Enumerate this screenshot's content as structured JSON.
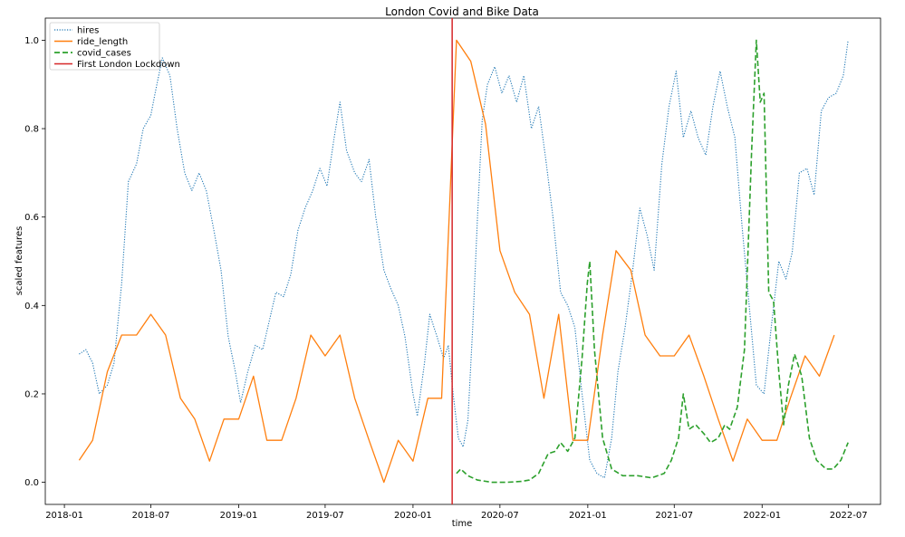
{
  "chart_data": {
    "type": "line",
    "title": "London Covid and Bike Data",
    "xlabel": "time",
    "ylabel": "scaled features",
    "x_ticks": [
      "2018-01",
      "2018-07",
      "2019-01",
      "2019-07",
      "2020-01",
      "2020-07",
      "2021-01",
      "2021-07",
      "2022-01",
      "2022-07"
    ],
    "y_ticks": [
      "0.0",
      "0.2",
      "0.4",
      "0.6",
      "0.8",
      "1.0"
    ],
    "xlim": [
      "2017-11-22",
      "2022-09-06"
    ],
    "ylim": [
      -0.05,
      1.05
    ],
    "grid": false,
    "legend_position": "top-left",
    "series": [
      {
        "name": "hires",
        "color": "#1f77b4",
        "style": "dotted",
        "points": [
          [
            "2018-02-01",
            0.29
          ],
          [
            "2018-02-15",
            0.3
          ],
          [
            "2018-03-01",
            0.27
          ],
          [
            "2018-03-15",
            0.2
          ],
          [
            "2018-04-01",
            0.22
          ],
          [
            "2018-04-15",
            0.27
          ],
          [
            "2018-05-01",
            0.45
          ],
          [
            "2018-05-15",
            0.68
          ],
          [
            "2018-06-01",
            0.72
          ],
          [
            "2018-06-15",
            0.8
          ],
          [
            "2018-07-01",
            0.83
          ],
          [
            "2018-07-10",
            0.88
          ],
          [
            "2018-07-25",
            0.96
          ],
          [
            "2018-08-10",
            0.92
          ],
          [
            "2018-08-25",
            0.8
          ],
          [
            "2018-09-10",
            0.7
          ],
          [
            "2018-09-25",
            0.66
          ],
          [
            "2018-10-10",
            0.7
          ],
          [
            "2018-10-25",
            0.66
          ],
          [
            "2018-11-10",
            0.57
          ],
          [
            "2018-11-25",
            0.48
          ],
          [
            "2018-12-10",
            0.33
          ],
          [
            "2018-12-25",
            0.25
          ],
          [
            "2019-01-05",
            0.18
          ],
          [
            "2019-01-20",
            0.25
          ],
          [
            "2019-02-05",
            0.31
          ],
          [
            "2019-02-20",
            0.3
          ],
          [
            "2019-03-05",
            0.36
          ],
          [
            "2019-03-20",
            0.43
          ],
          [
            "2019-04-05",
            0.42
          ],
          [
            "2019-04-20",
            0.47
          ],
          [
            "2019-05-05",
            0.57
          ],
          [
            "2019-05-20",
            0.62
          ],
          [
            "2019-06-05",
            0.66
          ],
          [
            "2019-06-20",
            0.71
          ],
          [
            "2019-07-05",
            0.67
          ],
          [
            "2019-07-20",
            0.78
          ],
          [
            "2019-08-01",
            0.86
          ],
          [
            "2019-08-15",
            0.75
          ],
          [
            "2019-09-01",
            0.7
          ],
          [
            "2019-09-15",
            0.68
          ],
          [
            "2019-10-01",
            0.73
          ],
          [
            "2019-10-15",
            0.6
          ],
          [
            "2019-11-01",
            0.48
          ],
          [
            "2019-11-15",
            0.44
          ],
          [
            "2019-12-01",
            0.4
          ],
          [
            "2019-12-15",
            0.33
          ],
          [
            "2020-01-01",
            0.2
          ],
          [
            "2020-01-10",
            0.15
          ],
          [
            "2020-01-25",
            0.27
          ],
          [
            "2020-02-05",
            0.38
          ],
          [
            "2020-02-20",
            0.33
          ],
          [
            "2020-03-05",
            0.28
          ],
          [
            "2020-03-15",
            0.31
          ],
          [
            "2020-03-25",
            0.2
          ],
          [
            "2020-04-05",
            0.1
          ],
          [
            "2020-04-15",
            0.08
          ],
          [
            "2020-04-25",
            0.14
          ],
          [
            "2020-05-05",
            0.35
          ],
          [
            "2020-05-15",
            0.6
          ],
          [
            "2020-05-25",
            0.82
          ],
          [
            "2020-06-05",
            0.9
          ],
          [
            "2020-06-20",
            0.94
          ],
          [
            "2020-07-05",
            0.88
          ],
          [
            "2020-07-20",
            0.92
          ],
          [
            "2020-08-05",
            0.86
          ],
          [
            "2020-08-20",
            0.92
          ],
          [
            "2020-09-05",
            0.8
          ],
          [
            "2020-09-20",
            0.85
          ],
          [
            "2020-10-05",
            0.73
          ],
          [
            "2020-10-20",
            0.6
          ],
          [
            "2020-11-05",
            0.43
          ],
          [
            "2020-11-20",
            0.4
          ],
          [
            "2020-12-05",
            0.35
          ],
          [
            "2020-12-20",
            0.2
          ],
          [
            "2021-01-05",
            0.05
          ],
          [
            "2021-01-20",
            0.02
          ],
          [
            "2021-02-05",
            0.01
          ],
          [
            "2021-02-20",
            0.1
          ],
          [
            "2021-03-05",
            0.25
          ],
          [
            "2021-03-20",
            0.35
          ],
          [
            "2021-04-05",
            0.48
          ],
          [
            "2021-04-20",
            0.62
          ],
          [
            "2021-05-05",
            0.56
          ],
          [
            "2021-05-20",
            0.48
          ],
          [
            "2021-06-05",
            0.72
          ],
          [
            "2021-06-20",
            0.85
          ],
          [
            "2021-07-05",
            0.93
          ],
          [
            "2021-07-20",
            0.78
          ],
          [
            "2021-08-05",
            0.84
          ],
          [
            "2021-08-20",
            0.78
          ],
          [
            "2021-09-05",
            0.74
          ],
          [
            "2021-09-20",
            0.85
          ],
          [
            "2021-10-05",
            0.93
          ],
          [
            "2021-10-20",
            0.85
          ],
          [
            "2021-11-05",
            0.78
          ],
          [
            "2021-11-20",
            0.58
          ],
          [
            "2021-12-05",
            0.4
          ],
          [
            "2021-12-20",
            0.22
          ],
          [
            "2022-01-05",
            0.2
          ],
          [
            "2022-01-20",
            0.35
          ],
          [
            "2022-02-05",
            0.5
          ],
          [
            "2022-02-20",
            0.46
          ],
          [
            "2022-03-05",
            0.52
          ],
          [
            "2022-03-20",
            0.7
          ],
          [
            "2022-04-05",
            0.71
          ],
          [
            "2022-04-20",
            0.65
          ],
          [
            "2022-05-05",
            0.84
          ],
          [
            "2022-05-20",
            0.87
          ],
          [
            "2022-06-05",
            0.88
          ],
          [
            "2022-06-20",
            0.92
          ],
          [
            "2022-06-30",
            1.0
          ]
        ]
      },
      {
        "name": "ride_length",
        "color": "#ff7f0e",
        "style": "solid",
        "points": [
          [
            "2018-02-01",
            0.05
          ],
          [
            "2018-03-01",
            0.095
          ],
          [
            "2018-04-01",
            0.25
          ],
          [
            "2018-05-01",
            0.333
          ],
          [
            "2018-06-01",
            0.333
          ],
          [
            "2018-07-01",
            0.38
          ],
          [
            "2018-08-01",
            0.333
          ],
          [
            "2018-09-01",
            0.19
          ],
          [
            "2018-10-01",
            0.143
          ],
          [
            "2018-11-01",
            0.048
          ],
          [
            "2018-12-01",
            0.143
          ],
          [
            "2019-01-01",
            0.143
          ],
          [
            "2019-02-01",
            0.24
          ],
          [
            "2019-03-01",
            0.095
          ],
          [
            "2019-04-01",
            0.095
          ],
          [
            "2019-05-01",
            0.19
          ],
          [
            "2019-06-01",
            0.333
          ],
          [
            "2019-07-01",
            0.286
          ],
          [
            "2019-08-01",
            0.333
          ],
          [
            "2019-09-01",
            0.19
          ],
          [
            "2019-10-01",
            0.095
          ],
          [
            "2019-11-01",
            0.0
          ],
          [
            "2019-12-01",
            0.095
          ],
          [
            "2020-01-01",
            0.048
          ],
          [
            "2020-02-01",
            0.19
          ],
          [
            "2020-03-01",
            0.19
          ],
          [
            "2020-04-01",
            1.0
          ],
          [
            "2020-05-01",
            0.952
          ],
          [
            "2020-06-01",
            0.81
          ],
          [
            "2020-07-01",
            0.524
          ],
          [
            "2020-08-01",
            0.43
          ],
          [
            "2020-09-01",
            0.38
          ],
          [
            "2020-10-01",
            0.19
          ],
          [
            "2020-11-01",
            0.38
          ],
          [
            "2020-12-01",
            0.095
          ],
          [
            "2021-01-01",
            0.095
          ],
          [
            "2021-02-01",
            0.333
          ],
          [
            "2021-03-01",
            0.524
          ],
          [
            "2021-04-01",
            0.48
          ],
          [
            "2021-05-01",
            0.333
          ],
          [
            "2021-06-01",
            0.286
          ],
          [
            "2021-07-01",
            0.286
          ],
          [
            "2021-08-01",
            0.333
          ],
          [
            "2021-09-01",
            0.24
          ],
          [
            "2021-10-01",
            0.143
          ],
          [
            "2021-11-01",
            0.048
          ],
          [
            "2021-12-01",
            0.143
          ],
          [
            "2022-01-01",
            0.095
          ],
          [
            "2022-02-01",
            0.095
          ],
          [
            "2022-03-01",
            0.19
          ],
          [
            "2022-04-01",
            0.286
          ],
          [
            "2022-05-01",
            0.24
          ],
          [
            "2022-06-01",
            0.333
          ]
        ]
      },
      {
        "name": "covid_cases",
        "color": "#2ca02c",
        "style": "dashed",
        "points": [
          [
            "2020-04-01",
            0.02
          ],
          [
            "2020-04-10",
            0.03
          ],
          [
            "2020-04-25",
            0.015
          ],
          [
            "2020-05-15",
            0.005
          ],
          [
            "2020-06-15",
            0.0
          ],
          [
            "2020-07-15",
            0.0
          ],
          [
            "2020-08-15",
            0.002
          ],
          [
            "2020-09-01",
            0.005
          ],
          [
            "2020-09-20",
            0.02
          ],
          [
            "2020-10-10",
            0.065
          ],
          [
            "2020-10-25",
            0.07
          ],
          [
            "2020-11-05",
            0.09
          ],
          [
            "2020-11-20",
            0.07
          ],
          [
            "2020-12-05",
            0.1
          ],
          [
            "2020-12-20",
            0.28
          ],
          [
            "2020-12-31",
            0.45
          ],
          [
            "2021-01-05",
            0.5
          ],
          [
            "2021-01-15",
            0.3
          ],
          [
            "2021-02-01",
            0.1
          ],
          [
            "2021-02-20",
            0.03
          ],
          [
            "2021-03-15",
            0.015
          ],
          [
            "2021-04-15",
            0.015
          ],
          [
            "2021-05-15",
            0.01
          ],
          [
            "2021-06-10",
            0.02
          ],
          [
            "2021-06-25",
            0.05
          ],
          [
            "2021-07-10",
            0.1
          ],
          [
            "2021-07-20",
            0.2
          ],
          [
            "2021-08-01",
            0.12
          ],
          [
            "2021-08-15",
            0.13
          ],
          [
            "2021-09-01",
            0.11
          ],
          [
            "2021-09-15",
            0.09
          ],
          [
            "2021-10-01",
            0.1
          ],
          [
            "2021-10-15",
            0.13
          ],
          [
            "2021-10-25",
            0.12
          ],
          [
            "2021-11-10",
            0.17
          ],
          [
            "2021-11-25",
            0.3
          ],
          [
            "2021-12-10",
            0.75
          ],
          [
            "2021-12-20",
            1.0
          ],
          [
            "2021-12-28",
            0.86
          ],
          [
            "2022-01-05",
            0.88
          ],
          [
            "2022-01-15",
            0.43
          ],
          [
            "2022-01-25",
            0.41
          ],
          [
            "2022-02-05",
            0.25
          ],
          [
            "2022-02-15",
            0.13
          ],
          [
            "2022-02-25",
            0.22
          ],
          [
            "2022-03-10",
            0.29
          ],
          [
            "2022-03-25",
            0.24
          ],
          [
            "2022-04-10",
            0.1
          ],
          [
            "2022-04-25",
            0.05
          ],
          [
            "2022-05-15",
            0.03
          ],
          [
            "2022-05-30",
            0.03
          ],
          [
            "2022-06-15",
            0.05
          ],
          [
            "2022-06-30",
            0.09
          ]
        ]
      }
    ],
    "vlines": [
      {
        "name": "First London Lockdown",
        "x": "2020-03-23",
        "color": "#d62728"
      }
    ]
  }
}
